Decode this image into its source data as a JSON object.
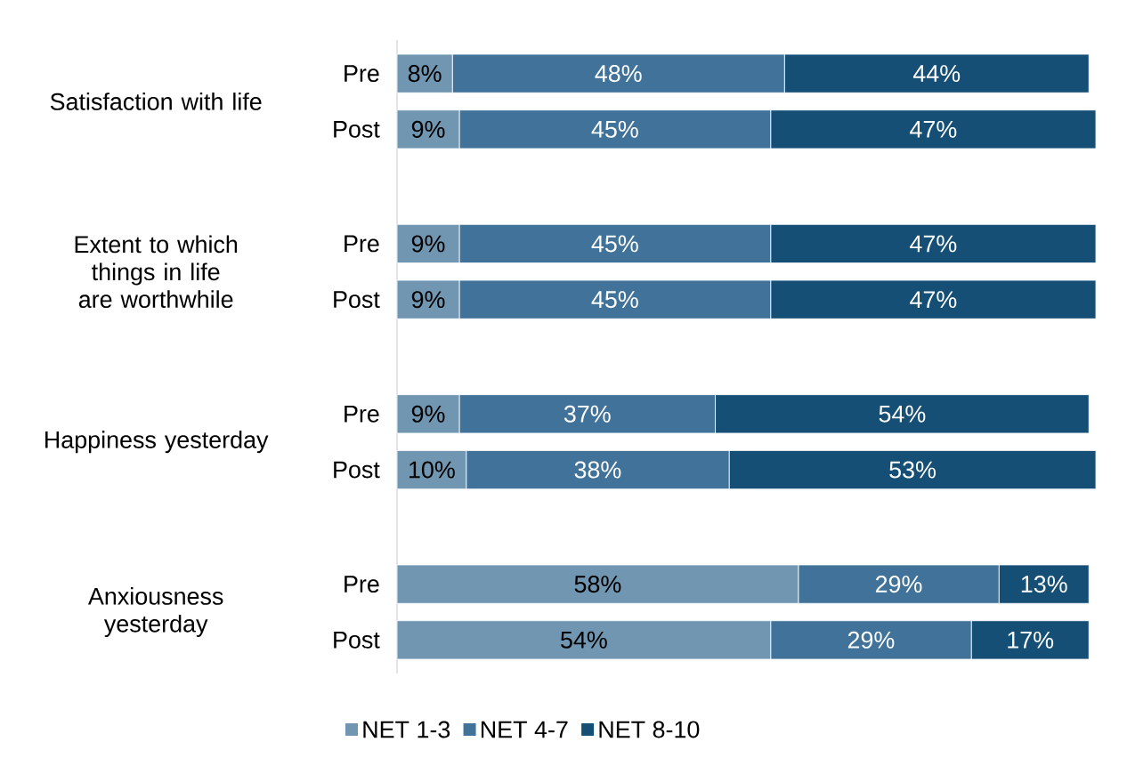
{
  "chart_data": {
    "type": "bar",
    "orientation": "horizontal",
    "stacked": true,
    "legend": "bottom",
    "categories": [
      "Pre",
      "Post",
      "Pre",
      "Post",
      "Pre",
      "Post",
      "Pre",
      "Post"
    ],
    "annotations": [
      "Satisfaction with life",
      "Extent to which things in life are worthwhile",
      "Happiness yesterday",
      "Anxiousness yesterday"
    ],
    "series": [
      {
        "name": "NET 1-3",
        "color": "#7096b1",
        "values": [
          8,
          9,
          9,
          9,
          9,
          10,
          58,
          54
        ],
        "value_labels": [
          "8%",
          "9%",
          "9%",
          "9%",
          "9%",
          "10%",
          "58%",
          "54%"
        ]
      },
      {
        "name": "NET 4-7",
        "color": "#41739a",
        "values": [
          48,
          45,
          45,
          45,
          37,
          38,
          29,
          29
        ],
        "value_labels": [
          "48%",
          "45%",
          "45%",
          "45%",
          "37%",
          "38%",
          "29%",
          "29%"
        ]
      },
      {
        "name": "NET 8-10",
        "color": "#154f75",
        "values": [
          44,
          47,
          47,
          47,
          54,
          53,
          13,
          17
        ],
        "value_labels": [
          "44%",
          "47%",
          "47%",
          "47%",
          "54%",
          "53%",
          "13%",
          "17%"
        ]
      }
    ]
  }
}
